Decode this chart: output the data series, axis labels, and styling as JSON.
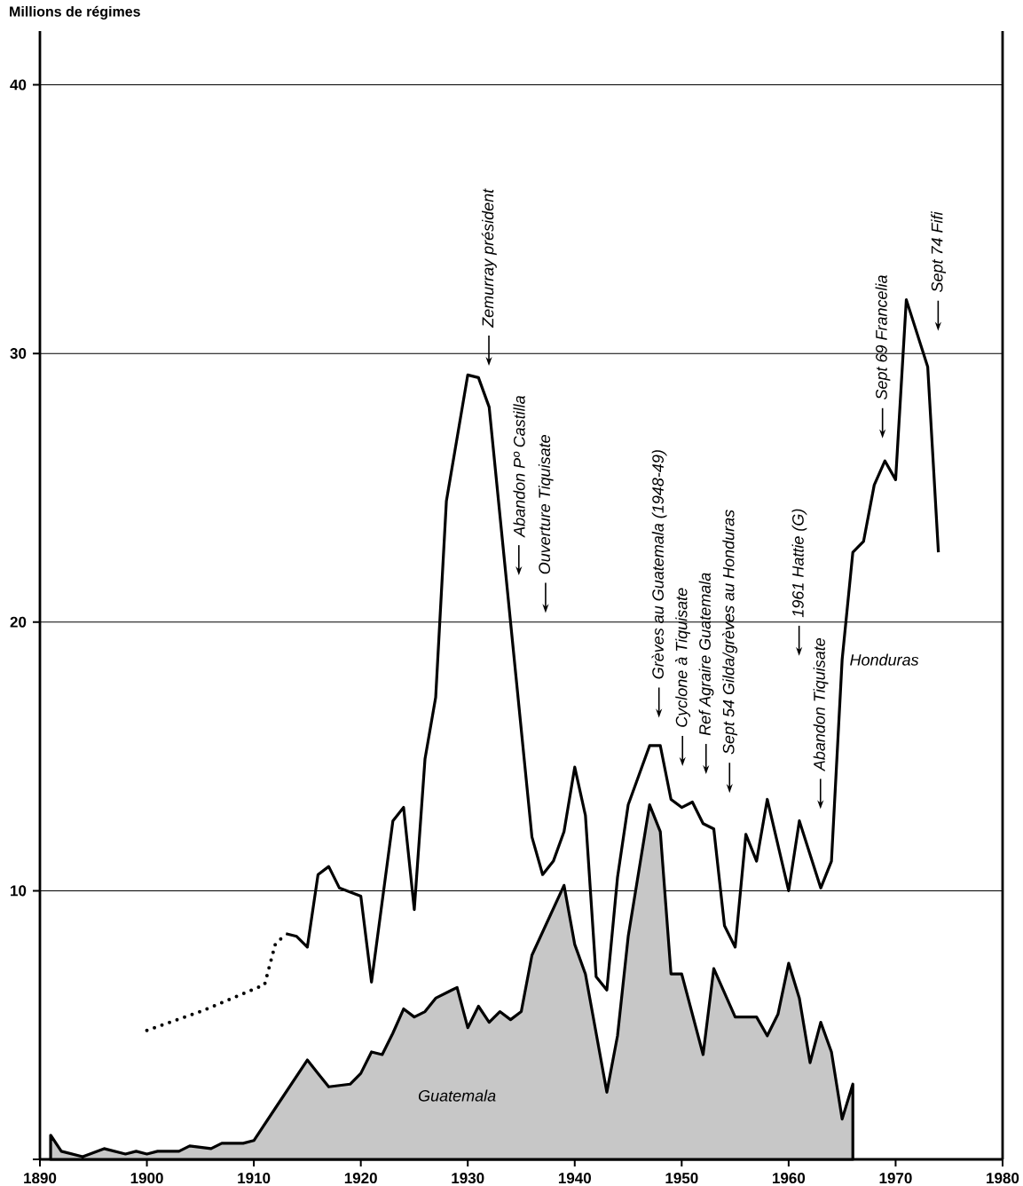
{
  "chart_data": {
    "type": "line",
    "ylabel": "Millions de régimes",
    "xlim": [
      1890,
      1980
    ],
    "ylim": [
      0,
      42
    ],
    "xticks": [
      1890,
      1900,
      1910,
      1920,
      1930,
      1940,
      1950,
      1960,
      1970,
      1980
    ],
    "yticks": [
      {
        "value": 0,
        "label": null
      },
      10,
      20,
      30,
      40
    ],
    "grid": "y",
    "series": [
      {
        "line_style": "dotted",
        "color": "#000000",
        "x": [
          1900,
          1905,
          1911,
          1912,
          1913
        ],
        "values": [
          4.8,
          5.5,
          6.5,
          8.0,
          8.4
        ]
      },
      {
        "name": "Honduras",
        "color": "#000000",
        "x": [
          1913,
          1914,
          1915,
          1916,
          1917,
          1918,
          1920,
          1921,
          1923,
          1924,
          1925,
          1926,
          1927,
          1928,
          1930,
          1931,
          1932,
          1936,
          1937,
          1938,
          1939,
          1940,
          1941,
          1942,
          1943,
          1944,
          1945,
          1946,
          1947,
          1948,
          1949,
          1950,
          1951,
          1952,
          1953,
          1954,
          1955,
          1956,
          1957,
          1958,
          1960,
          1961,
          1963,
          1964,
          1965,
          1966,
          1967,
          1968,
          1969,
          1970,
          1971,
          1973,
          1974
        ],
        "values": [
          8.4,
          8.3,
          7.9,
          10.6,
          10.9,
          10.1,
          9.8,
          6.6,
          12.6,
          13.1,
          9.3,
          14.9,
          17.2,
          24.5,
          29.2,
          29.1,
          28.0,
          12.0,
          10.6,
          11.1,
          12.2,
          14.6,
          12.8,
          6.8,
          6.3,
          10.5,
          13.2,
          14.3,
          15.4,
          15.4,
          13.4,
          13.1,
          13.3,
          12.5,
          12.3,
          8.7,
          7.9,
          12.1,
          11.1,
          13.4,
          10.0,
          12.6,
          10.1,
          11.1,
          18.6,
          22.6,
          23.0,
          25.1,
          26.0,
          25.3,
          32.0,
          29.5,
          22.6
        ]
      },
      {
        "type": "area",
        "name": "Guatemala",
        "color": "#000000",
        "x": [
          1891,
          1892,
          1894,
          1896,
          1898,
          1899,
          1900,
          1901,
          1903,
          1904,
          1906,
          1907,
          1909,
          1910,
          1912,
          1915,
          1916,
          1917,
          1919,
          1920,
          1921,
          1922,
          1923,
          1924,
          1925,
          1926,
          1927,
          1929,
          1930,
          1931,
          1932,
          1933,
          1934,
          1935,
          1936,
          1939,
          1940,
          1941,
          1943,
          1944,
          1945,
          1947,
          1948,
          1949,
          1950,
          1952,
          1953,
          1955,
          1957,
          1958,
          1959,
          1960,
          1961,
          1962,
          1963,
          1964,
          1965,
          1966
        ],
        "values": [
          0.9,
          0.3,
          0.1,
          0.4,
          0.2,
          0.3,
          0.2,
          0.3,
          0.3,
          0.5,
          0.4,
          0.6,
          0.6,
          0.7,
          1.9,
          3.7,
          3.2,
          2.7,
          2.8,
          3.2,
          4.0,
          3.9,
          4.7,
          5.6,
          5.3,
          5.5,
          6.0,
          6.4,
          4.9,
          5.7,
          5.1,
          5.5,
          5.2,
          5.5,
          7.6,
          10.2,
          8.0,
          6.9,
          2.5,
          4.6,
          8.3,
          13.2,
          12.2,
          6.9,
          6.9,
          3.9,
          7.1,
          5.3,
          5.3,
          4.6,
          5.4,
          7.3,
          6.0,
          3.6,
          5.1,
          4.0,
          1.5,
          2.8
        ]
      }
    ],
    "annotations": [
      "Zemurray président",
      "Abandon Pº Castilla",
      "Ouverture Tiquisate",
      "Grèves au Guatemala (1948-49)",
      "Cyclone à Tiquisate",
      "Ref Agraire Guatemala",
      "Sept 54  Gilda/grèves au Honduras",
      "1961 Hattie  (G)",
      "Abandon Tiquisate",
      "Sept 69 Francelia",
      "Sept 74 Fifi"
    ]
  }
}
